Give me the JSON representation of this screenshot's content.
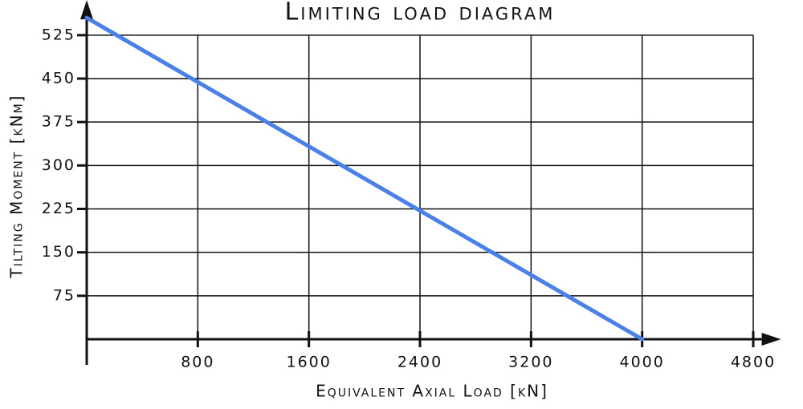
{
  "chart_data": {
    "type": "line",
    "title": "Limiting load diagram",
    "x_label": "Equivalent Axial Load [kN]",
    "y_label": "Tilting Moment [kNm]",
    "series": [
      {
        "name": "Limiting load",
        "color": "#4a80ea",
        "x": [
          0,
          4000
        ],
        "values": [
          555,
          0
        ]
      }
    ],
    "xlim": [
      0,
      5000
    ],
    "ylim": [
      0,
      580
    ],
    "xticks": [
      800,
      1600,
      2400,
      3200,
      4000,
      4800
    ],
    "yticks": [
      75,
      150,
      225,
      300,
      375,
      450,
      525
    ],
    "grid": true
  }
}
